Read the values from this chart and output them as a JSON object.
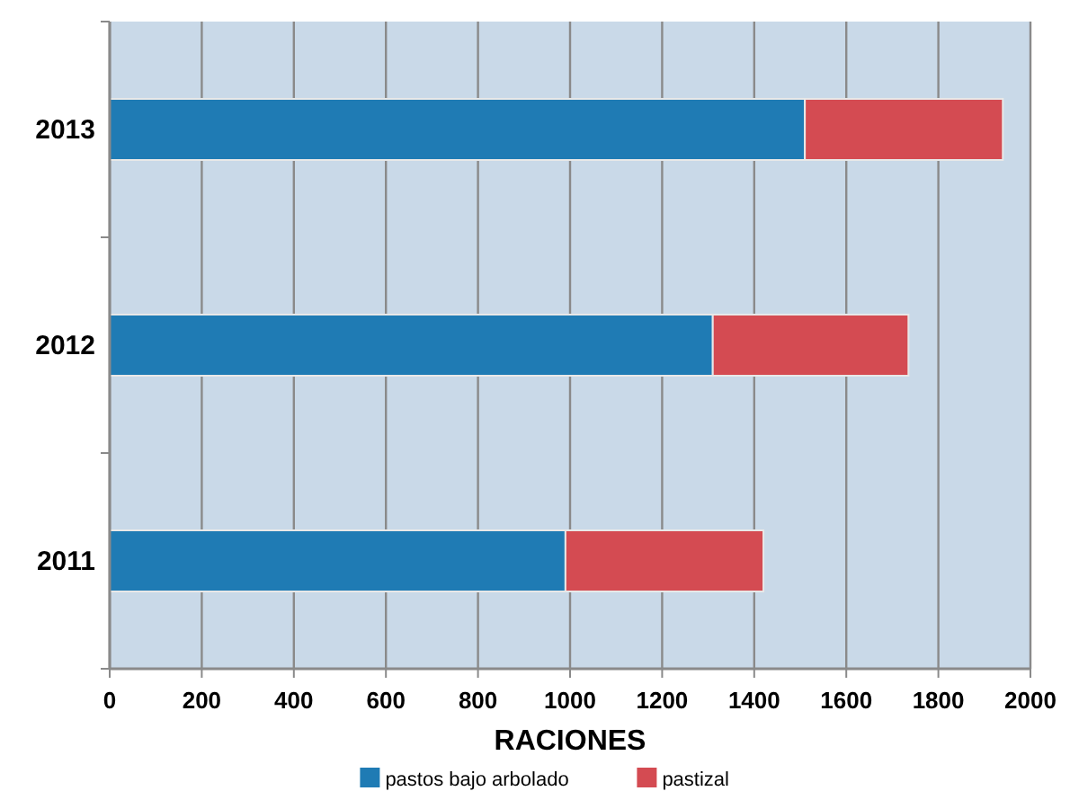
{
  "chart_data": {
    "type": "bar",
    "orientation": "horizontal",
    "stacked": true,
    "xlabel": "RACIONES",
    "categories": [
      "2013",
      "2012",
      "2011"
    ],
    "series": [
      {
        "name": "pastos bajo arbolado",
        "color": "#1f7bb4",
        "values": [
          1510,
          1310,
          990
        ]
      },
      {
        "name": "pastizal",
        "color": "#d44b52",
        "values": [
          430,
          425,
          430
        ]
      }
    ],
    "xlim": [
      0,
      2000
    ],
    "xticks": [
      0,
      200,
      400,
      600,
      800,
      1000,
      1200,
      1400,
      1600,
      1800,
      2000
    ],
    "grid": "x",
    "legend": "bottom"
  }
}
